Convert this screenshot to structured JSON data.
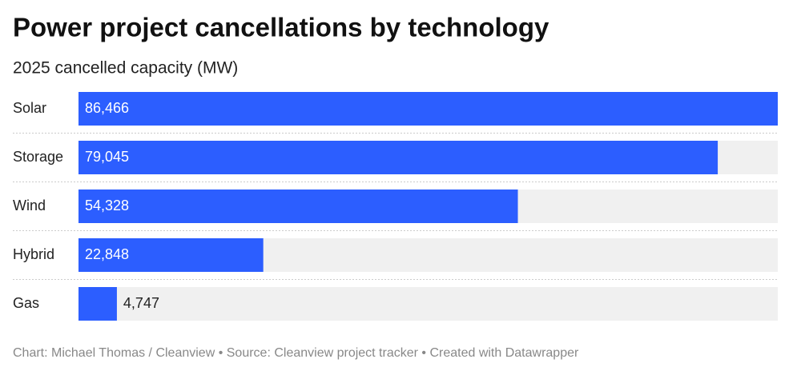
{
  "chart_data": {
    "type": "bar",
    "orientation": "horizontal",
    "title": "Power project cancellations by technology",
    "subtitle": "2025 cancelled capacity (MW)",
    "categories": [
      "Solar",
      "Storage",
      "Wind",
      "Hybrid",
      "Gas"
    ],
    "values": [
      86466,
      79045,
      54328,
      22848,
      4747
    ],
    "value_labels": [
      "86,466",
      "79,045",
      "54,328",
      "22,848",
      "4,747"
    ],
    "color": "#2c5eff",
    "xlim": [
      0,
      86466
    ],
    "footer": "Chart: Michael Thomas / Cleanview • Source: Cleanview project tracker • Created with Datawrapper"
  }
}
